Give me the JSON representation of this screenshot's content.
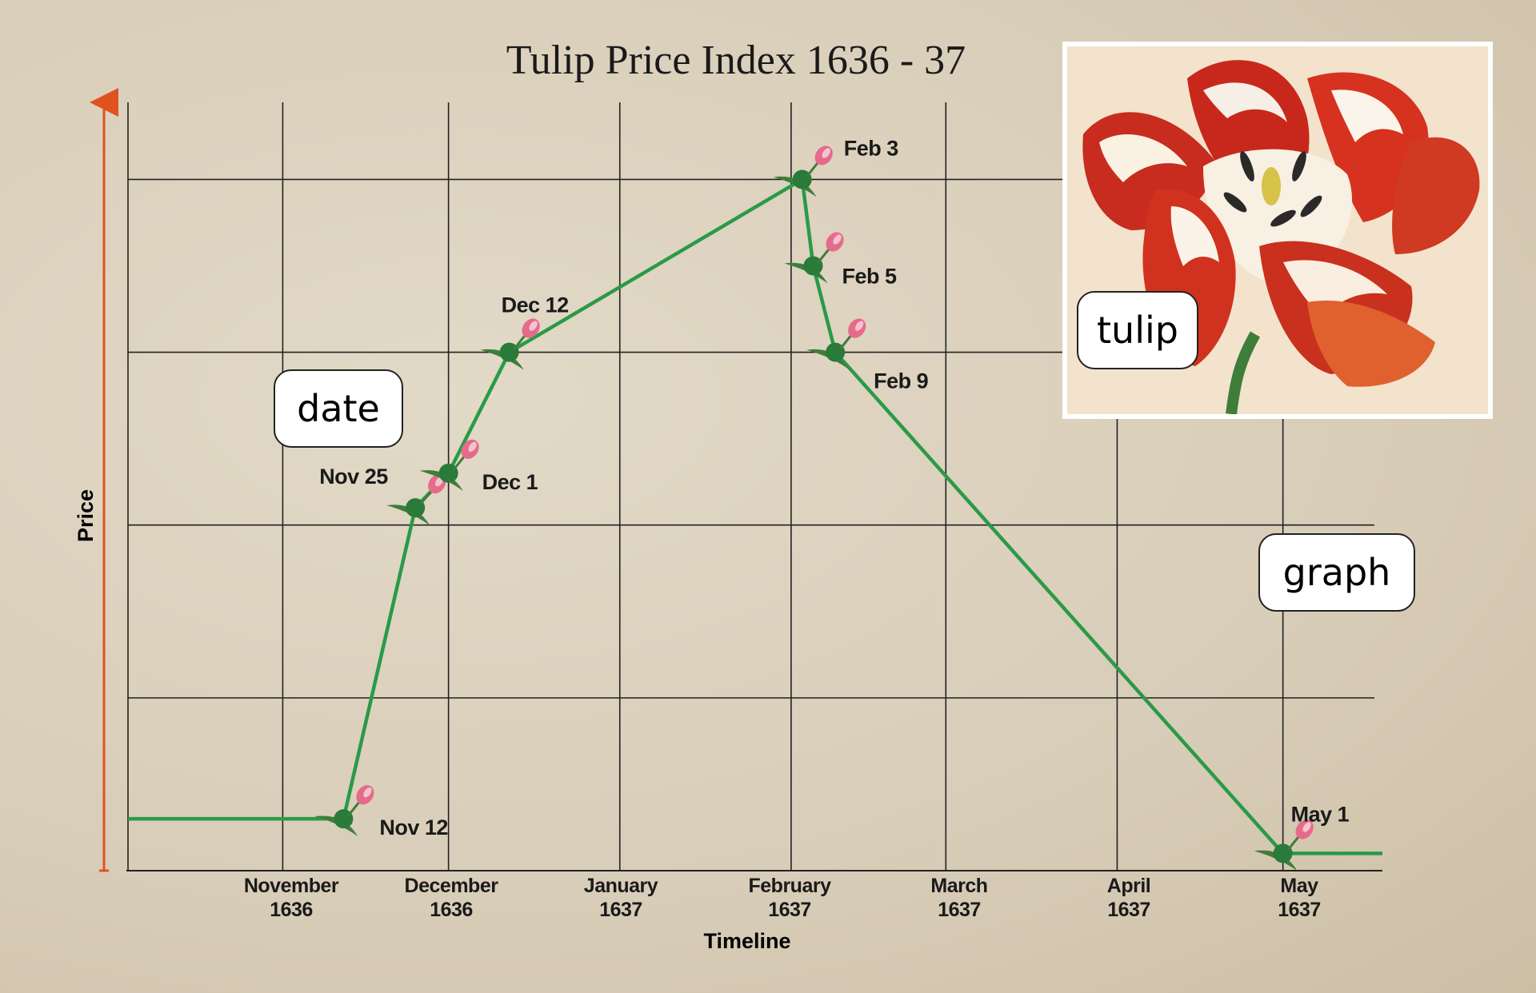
{
  "chart_data": {
    "type": "line",
    "title": "Tulip Price Index 1636 - 37",
    "xlabel": "Timeline",
    "ylabel": "Price",
    "x_ticks": [
      {
        "month": "November",
        "year": "1636"
      },
      {
        "month": "December",
        "year": "1636"
      },
      {
        "month": "January",
        "year": "1637"
      },
      {
        "month": "February",
        "year": "1637"
      },
      {
        "month": "March",
        "year": "1637"
      },
      {
        "month": "April",
        "year": "1637"
      },
      {
        "month": "May",
        "year": "1637"
      }
    ],
    "xlim": [
      "1636-10-04",
      "1637-05-19"
    ],
    "ylim": [
      0,
      4.4
    ],
    "grid": true,
    "points": [
      {
        "date": "1636-10-04",
        "value": 0.3,
        "label": ""
      },
      {
        "date": "1636-11-12",
        "value": 0.3,
        "label": "Nov 12"
      },
      {
        "date": "1636-11-25",
        "value": 2.1,
        "label": "Nov 25"
      },
      {
        "date": "1636-12-01",
        "value": 2.3,
        "label": "Dec 1"
      },
      {
        "date": "1636-12-12",
        "value": 3.0,
        "label": "Dec 12"
      },
      {
        "date": "1637-02-03",
        "value": 4.0,
        "label": "Feb 3"
      },
      {
        "date": "1637-02-05",
        "value": 3.5,
        "label": "Feb 5"
      },
      {
        "date": "1637-02-09",
        "value": 3.0,
        "label": "Feb 9"
      },
      {
        "date": "1637-05-01",
        "value": 0.1,
        "label": "May 1"
      },
      {
        "date": "1637-05-19",
        "value": 0.1,
        "label": ""
      }
    ],
    "line_color": "#2a9a48",
    "axis_color": "#e0521e"
  },
  "labels": {
    "date_card": "date",
    "tulip_card": "tulip",
    "graph_card": "graph"
  }
}
